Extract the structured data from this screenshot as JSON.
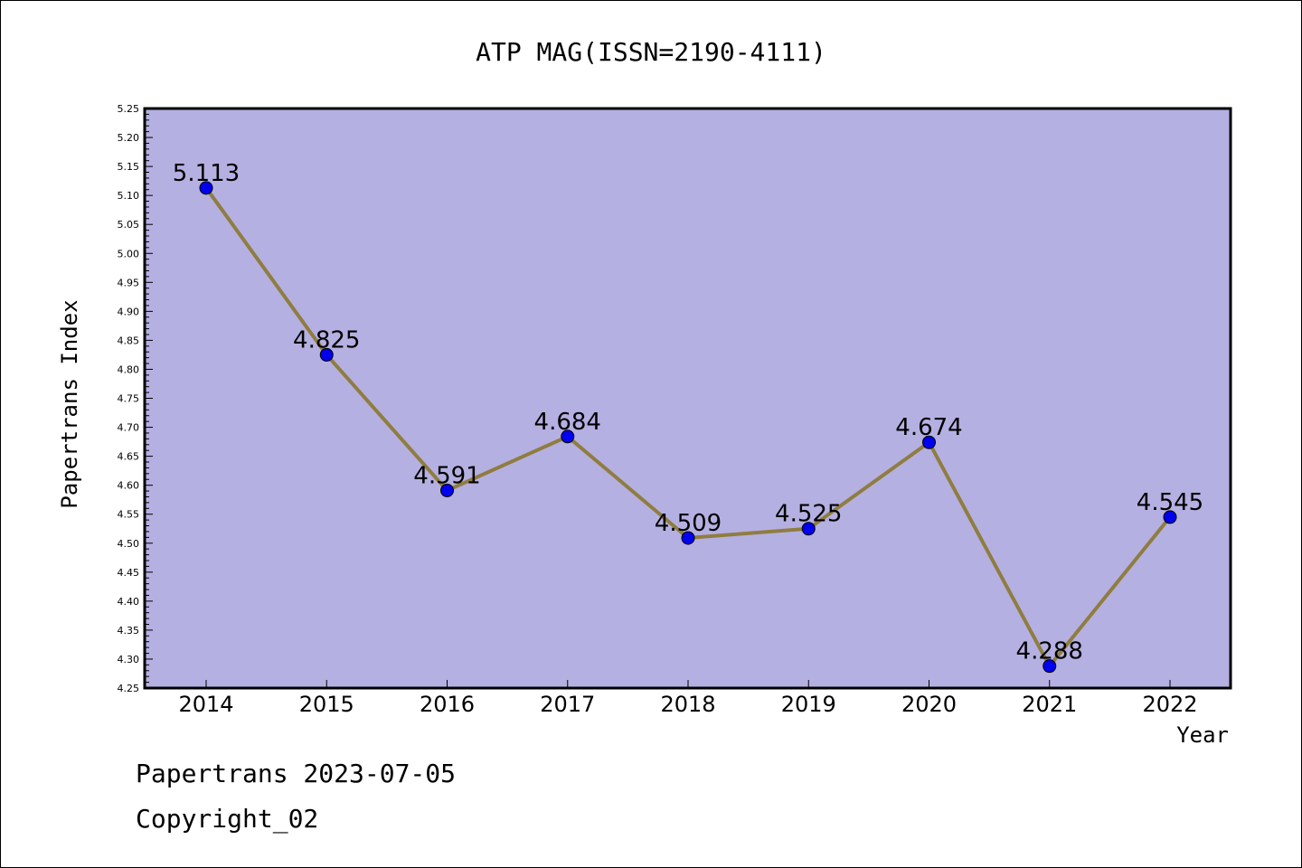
{
  "chart_data": {
    "type": "line",
    "title": "ATP MAG(ISSN=2190-4111)",
    "xlabel": "Year",
    "ylabel": "Papertrans Index",
    "categories": [
      "2014",
      "2015",
      "2016",
      "2017",
      "2018",
      "2019",
      "2020",
      "2021",
      "2022"
    ],
    "values": [
      5.113,
      4.825,
      4.591,
      4.684,
      4.509,
      4.525,
      4.674,
      4.288,
      4.545
    ],
    "data_labels": [
      "5.113",
      "4.825",
      "4.591",
      "4.684",
      "4.509",
      "4.525",
      "4.674",
      "4.288",
      "4.545"
    ],
    "ylim": [
      4.25,
      5.25
    ],
    "ytick_labels": [
      "4.25",
      "4.30",
      "4.35",
      "4.40",
      "4.45",
      "4.50",
      "4.55",
      "4.60",
      "4.65",
      "4.70",
      "4.75",
      "4.80",
      "4.85",
      "4.90",
      "4.95",
      "5.00",
      "5.05",
      "5.10",
      "5.15",
      "5.20",
      "5.25"
    ],
    "grid": false,
    "colors": {
      "plot_background": "#b5b0e2",
      "line": "#8f7d40",
      "marker": "#0000ee"
    }
  },
  "footer": {
    "line1": "Papertrans 2023-07-05",
    "line2": "Copyright_02"
  }
}
